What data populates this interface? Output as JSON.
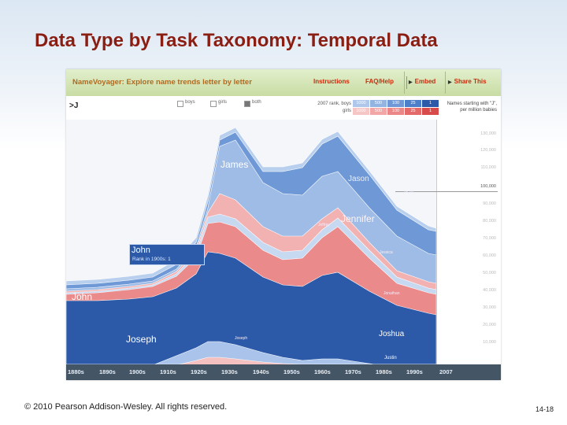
{
  "slide": {
    "title": "Data Type by Task Taxonomy: Temporal Data",
    "footer": "© 2010 Pearson Addison-Wesley. All rights reserved.",
    "page_number": "14-18"
  },
  "app": {
    "title": "NameVoyager: Explore name trends letter by letter",
    "links": [
      "Instructions",
      "FAQ/Help",
      "Embed",
      "Share This"
    ],
    "query": ">J",
    "filters": [
      {
        "label": "boys",
        "checked": false
      },
      {
        "label": "girls",
        "checked": false
      },
      {
        "label": "both",
        "checked": true
      }
    ],
    "rank_labels": {
      "boys": "2007 rank, boys",
      "girls": "girls"
    },
    "rank_values": [
      "1000",
      "500",
      "100",
      "25",
      "1"
    ],
    "right_title": "Names starting with \"J\", per million babies",
    "y_ticks": [
      "130,000",
      "120,000",
      "110,000",
      "100,000",
      "90,000",
      "80,000",
      "70,000",
      "60,000",
      "50,000",
      "40,000",
      "30,000",
      "20,000",
      "10,000"
    ],
    "highlight_tick": "100,000",
    "decades": [
      "1880s",
      "1890s",
      "1900s",
      "1910s",
      "1920s",
      "1930s",
      "1940s",
      "1950s",
      "1960s",
      "1970s",
      "1980s",
      "1990s",
      "2007"
    ],
    "labels": {
      "james": "James",
      "jason": "Jason",
      "jennifer": "Jennifer",
      "john": "John",
      "joseph": "Joseph",
      "joshua": "Joshua",
      "jeffrey": "Jeffrey",
      "jessica": "Jessica",
      "jacob": "Jacob",
      "justin": "Justin",
      "jonathan": "Jonathan",
      "joseph_small": "Joseph"
    },
    "tooltip": {
      "name": "John",
      "rank": "Rank in 1900s: 1"
    }
  }
}
